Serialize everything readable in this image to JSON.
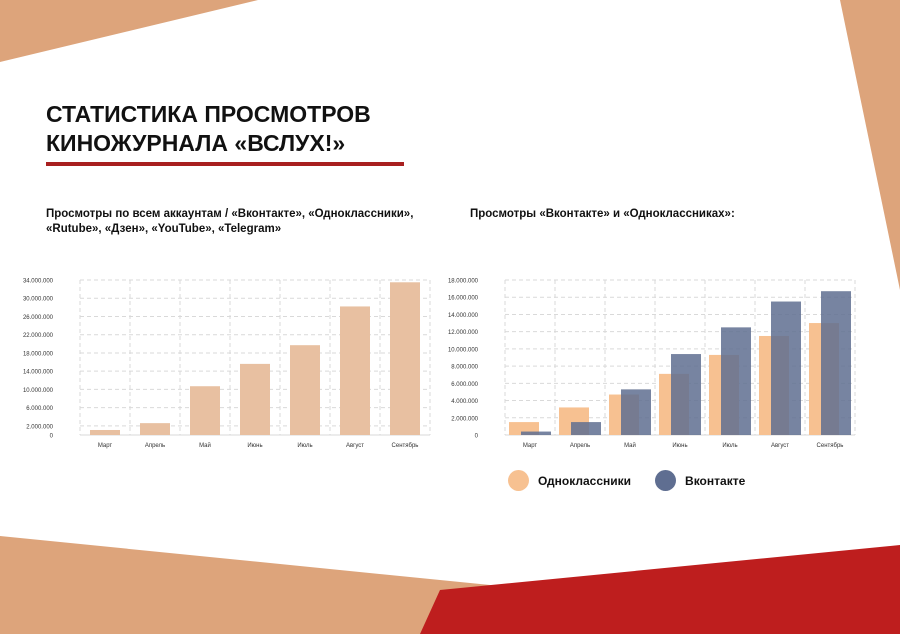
{
  "page": {
    "title_line1": "СТАТИСТИКА ПРОСМОТРОВ",
    "title_line2": "КИНОЖУРНАЛА «ВСЛУХ!»",
    "left_subtitle_line1": "Просмотры по всем аккаунтам / «Вконтакте», «Одноклассники»,",
    "left_subtitle_line2": "«Rutube», «Дзен», «YouTube», «Telegram»",
    "right_subtitle": "Просмотры «Вконтакте» и «Одноклассниках»:"
  },
  "colors": {
    "accent_red": "#a81f1f",
    "corner_beige": "#dda47b",
    "bottom_red": "#be1e1e",
    "bar_total": "#e8c0a1",
    "ok": "#f7c191",
    "vk": "#5f6e91",
    "grid": "#d9d9d9"
  },
  "chart_data": [
    {
      "type": "bar",
      "categories": [
        "Март",
        "Апрель",
        "Май",
        "Июнь",
        "Июль",
        "Август",
        "Сентябрь"
      ],
      "values": [
        1100000,
        2600000,
        10700000,
        15600000,
        19700000,
        28200000,
        33500000
      ],
      "ylim": [
        0,
        34000000
      ],
      "yticks": [
        0,
        2000000,
        6000000,
        10000000,
        14000000,
        18000000,
        22000000,
        26000000,
        30000000,
        34000000
      ],
      "ytick_labels": [
        "0",
        "2.000.000",
        "6.000.000",
        "10.000.000",
        "14.000.000",
        "18.000.000",
        "22.000.000",
        "26.000.000",
        "30.000.000",
        "34.000.000"
      ],
      "grid": true
    },
    {
      "type": "bar",
      "categories": [
        "Март",
        "Апрель",
        "Май",
        "Июнь",
        "Июль",
        "Август",
        "Сентябрь"
      ],
      "series": [
        {
          "name": "Одноклассники",
          "values": [
            1500000,
            3200000,
            4700000,
            7100000,
            9300000,
            11500000,
            13000000
          ]
        },
        {
          "name": "Вконтакте",
          "values": [
            400000,
            1500000,
            5300000,
            9400000,
            12500000,
            15500000,
            16700000
          ]
        }
      ],
      "ylim": [
        0,
        18000000
      ],
      "yticks": [
        0,
        2000000,
        4000000,
        6000000,
        8000000,
        10000000,
        12000000,
        14000000,
        16000000,
        18000000
      ],
      "ytick_labels": [
        "0",
        "2.000.000",
        "4.000.000",
        "6.000.000",
        "8.000.000",
        "10.000.000",
        "12.000.000",
        "14.000.000",
        "16.000.000",
        "18.000.000"
      ],
      "grid": true,
      "legend": "bottom"
    }
  ]
}
